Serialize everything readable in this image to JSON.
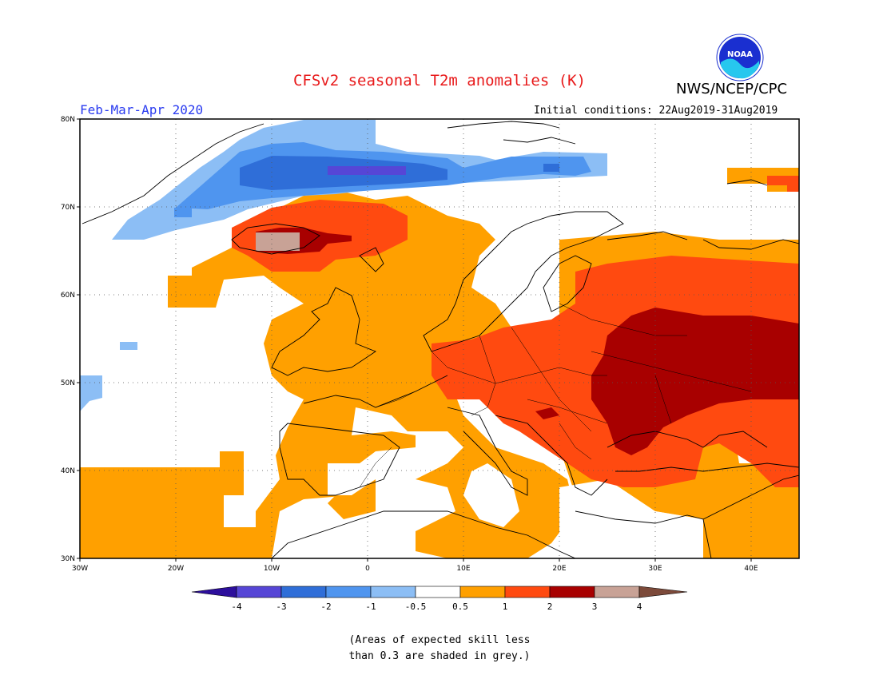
{
  "title": "CFSv2 seasonal T2m anomalies (K)",
  "period": "Feb-Mar-Apr 2020",
  "initial_conditions": "Initial conditions: 22Aug2019-31Aug2019",
  "agency": "NWS/NCEP/CPC",
  "logo_text": "NOAA",
  "map": {
    "region": "Europe",
    "lon_range": [
      -30,
      45
    ],
    "lat_range": [
      30,
      80
    ],
    "lat_labels": [
      "80N",
      "70N",
      "60N",
      "50N",
      "40N",
      "30N"
    ],
    "lon_labels": [
      "30W",
      "20W",
      "10W",
      "0",
      "10E",
      "20E",
      "30E",
      "40E"
    ],
    "grid": "dotted"
  },
  "colorbar": {
    "labels": [
      "-4",
      "-3",
      "-2",
      "-1",
      "-0.5",
      "0.5",
      "1",
      "2",
      "3",
      "4"
    ],
    "colors": [
      "#2d0f9c",
      "#5646d6",
      "#2f6ed8",
      "#4f95ef",
      "#8cbef5",
      "#ffffff",
      "#ffa000",
      "#ff4a10",
      "#a80000",
      "#c8a296",
      "#7c4a3a"
    ]
  },
  "note_line1": "(Areas of expected skill less",
  "note_line2": "than 0.3 are shaded in grey.)"
}
